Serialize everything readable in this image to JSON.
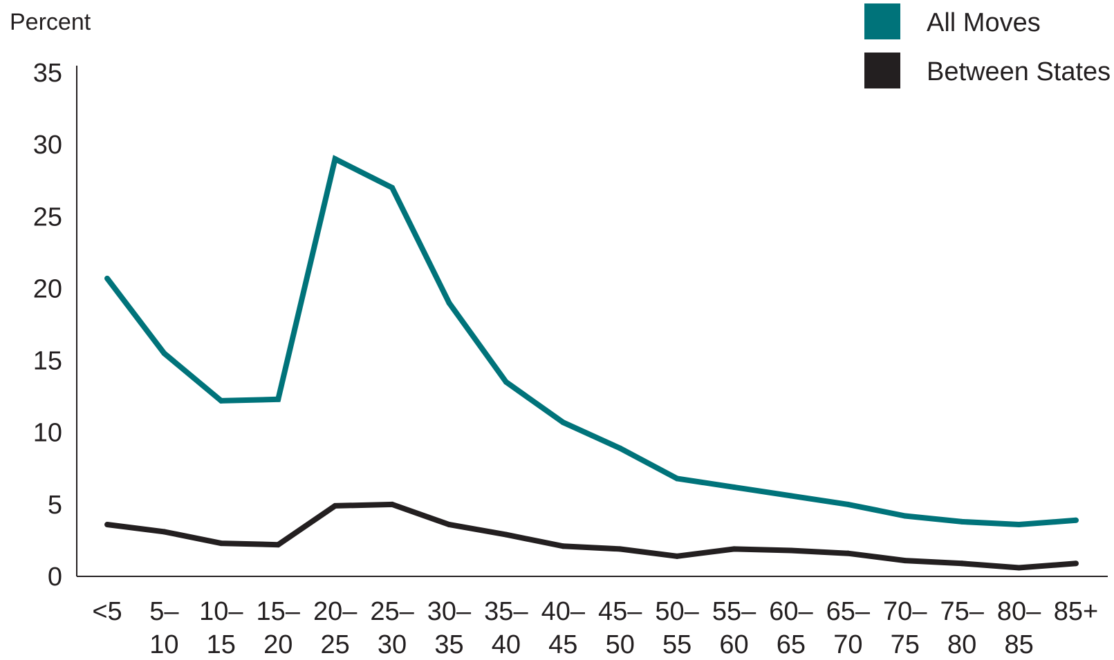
{
  "chart_data": {
    "type": "line",
    "ylabel": "Percent",
    "xlabel": "",
    "title": "",
    "ylim": [
      0,
      35
    ],
    "yticks": [
      0,
      5,
      10,
      15,
      20,
      25,
      30,
      35
    ],
    "categories": [
      {
        "top": "<5",
        "bottom": ""
      },
      {
        "top": "5–",
        "bottom": "10"
      },
      {
        "top": "10–",
        "bottom": "15"
      },
      {
        "top": "15–",
        "bottom": "20"
      },
      {
        "top": "20–",
        "bottom": "25"
      },
      {
        "top": "25–",
        "bottom": "30"
      },
      {
        "top": "30–",
        "bottom": "35"
      },
      {
        "top": "35–",
        "bottom": "40"
      },
      {
        "top": "40–",
        "bottom": "45"
      },
      {
        "top": "45–",
        "bottom": "50"
      },
      {
        "top": "50–",
        "bottom": "55"
      },
      {
        "top": "55–",
        "bottom": "60"
      },
      {
        "top": "60–",
        "bottom": "65"
      },
      {
        "top": "65–",
        "bottom": "70"
      },
      {
        "top": "70–",
        "bottom": "75"
      },
      {
        "top": "75–",
        "bottom": "80"
      },
      {
        "top": "80–",
        "bottom": "85"
      },
      {
        "top": "85+",
        "bottom": ""
      }
    ],
    "series": [
      {
        "name": "All Moves",
        "color": "#00737a",
        "values": [
          20.7,
          15.5,
          12.2,
          12.3,
          29.0,
          27.0,
          19.0,
          13.5,
          10.7,
          8.9,
          6.8,
          6.2,
          5.6,
          5.0,
          4.2,
          3.8,
          3.6,
          3.9
        ]
      },
      {
        "name": "Between States",
        "color": "#231f20",
        "values": [
          3.6,
          3.1,
          2.3,
          2.2,
          4.9,
          5.0,
          3.6,
          2.9,
          2.1,
          1.9,
          1.4,
          1.9,
          1.8,
          1.6,
          1.1,
          0.9,
          0.6,
          0.9
        ]
      }
    ],
    "legend_position": "top-right",
    "grid": false
  }
}
